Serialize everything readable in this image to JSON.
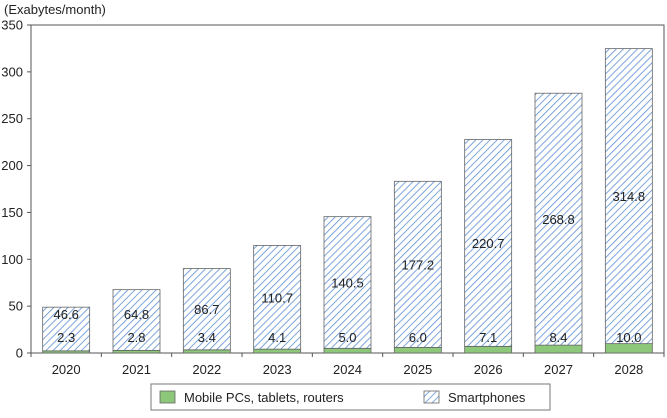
{
  "chart_data": {
    "type": "bar",
    "stacked": true,
    "title": "",
    "ylabel": "(Exabytes/month)",
    "xlabel": "",
    "categories": [
      "2020",
      "2021",
      "2022",
      "2023",
      "2024",
      "2025",
      "2026",
      "2027",
      "2028"
    ],
    "yticks": [
      0,
      50,
      100,
      150,
      200,
      250,
      300,
      350
    ],
    "ylim": [
      0,
      350
    ],
    "grid": false,
    "legend_position": "bottom",
    "series": [
      {
        "name": "Mobile PCs, tablets, routers",
        "color": "#8dc87a",
        "pattern": "solid",
        "values": [
          2.3,
          2.8,
          3.4,
          4.1,
          5.0,
          6.0,
          7.1,
          8.4,
          10.0
        ],
        "labels": [
          "2.3",
          "2.8",
          "3.4",
          "4.1",
          "5.0",
          "6.0",
          "7.1",
          "8.4",
          "10.0"
        ]
      },
      {
        "name": "Smartphones",
        "color": "#5b8fd1",
        "pattern": "diagonal-hatch",
        "values": [
          46.6,
          64.8,
          86.7,
          110.7,
          140.5,
          177.2,
          220.7,
          268.8,
          314.8
        ],
        "labels": [
          "46.6",
          "64.8",
          "86.7",
          "110.7",
          "140.5",
          "177.2",
          "220.7",
          "268.8",
          "314.8"
        ]
      }
    ]
  }
}
